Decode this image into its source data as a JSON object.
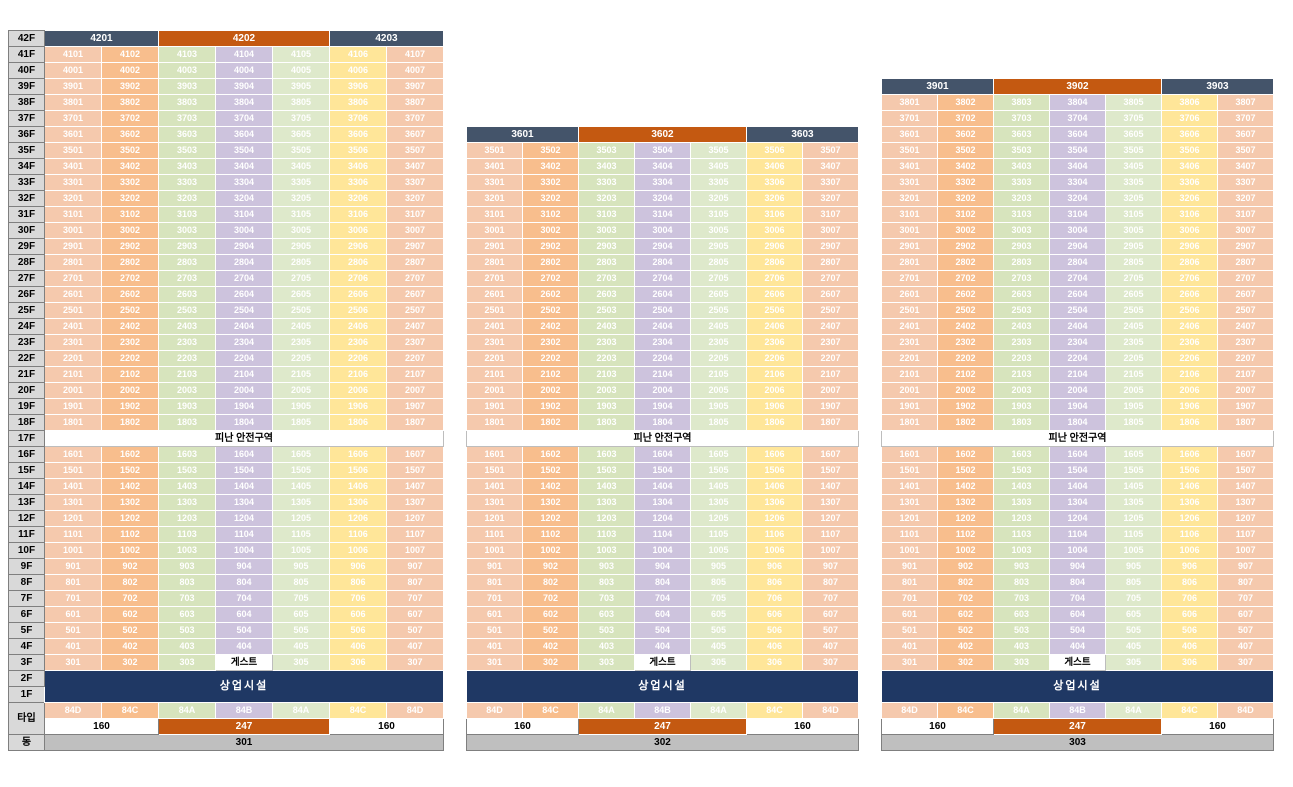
{
  "labels": {
    "refuge": "피난 안전구역",
    "guest": "게스트",
    "commercial": "상업시설",
    "type_row_label": "타입",
    "dong_row_label": "동"
  },
  "colors": {
    "header_navy": "#44546A",
    "header_orange": "#C45911",
    "commercial_navy": "#1F3864",
    "floor_label_bg": "#D9D9D9",
    "dong_bg": "#BFBFBF",
    "area_mid_bg": "#C45911",
    "unit_text": "#FFFFFF",
    "column_colors": [
      "#F5C9AD",
      "#F8BE8D",
      "#D7E4BD",
      "#CDC3DD",
      "#DEE9CB",
      "#FFE699",
      "#F5C9AD"
    ]
  },
  "chart_data": {
    "type": "table",
    "description": "Apartment stacking plan with three towers (301, 302, 303); unit numbers by floor, unit types and areas at bottom",
    "refuge_floor": 17,
    "commercial_floor_labels": [
      "2F",
      "1F"
    ],
    "floor_labels": [
      "42F",
      "41F",
      "40F",
      "39F",
      "38F",
      "37F",
      "36F",
      "35F",
      "34F",
      "33F",
      "32F",
      "31F",
      "30F",
      "29F",
      "28F",
      "27F",
      "26F",
      "25F",
      "24F",
      "23F",
      "22F",
      "21F",
      "20F",
      "19F",
      "18F",
      "17F",
      "16F",
      "15F",
      "14F",
      "13F",
      "12F",
      "11F",
      "10F",
      "9F",
      "8F",
      "7F",
      "6F",
      "5F",
      "4F",
      "3F",
      "2F",
      "1F"
    ],
    "towers": [
      {
        "name": "301",
        "top_floor": 42,
        "top_units": [
          "4201",
          "4202",
          "4203"
        ],
        "types": [
          "84D",
          "84C",
          "84A",
          "84B",
          "84A",
          "84C",
          "84D"
        ],
        "areas": [
          "160",
          "247",
          "160"
        ]
      },
      {
        "name": "302",
        "top_floor": 36,
        "top_units": [
          "3601",
          "3602",
          "3603"
        ],
        "types": [
          "84D",
          "84C",
          "84A",
          "84B",
          "84A",
          "84C",
          "84D"
        ],
        "areas": [
          "160",
          "247",
          "160"
        ]
      },
      {
        "name": "303",
        "top_floor": 39,
        "top_units": [
          "3901",
          "3902",
          "3903"
        ],
        "types": [
          "84D",
          "84C",
          "84A",
          "84B",
          "84A",
          "84C",
          "84D"
        ],
        "areas": [
          "160",
          "247",
          "160"
        ]
      }
    ],
    "unit_rows": {
      "41": [
        "4101",
        "4102",
        "4103",
        "4104",
        "4105",
        "4106",
        "4107"
      ],
      "40": [
        "4001",
        "4002",
        "4003",
        "4004",
        "4005",
        "4006",
        "4007"
      ],
      "39": [
        "3901",
        "3902",
        "3903",
        "3904",
        "3905",
        "3906",
        "3907"
      ],
      "38": [
        "3801",
        "3802",
        "3803",
        "3804",
        "3805",
        "3806",
        "3807"
      ],
      "37": [
        "3701",
        "3702",
        "3703",
        "3704",
        "3705",
        "3706",
        "3707"
      ],
      "36": [
        "3601",
        "3602",
        "3603",
        "3604",
        "3605",
        "3606",
        "3607"
      ],
      "35": [
        "3501",
        "3502",
        "3503",
        "3504",
        "3505",
        "3506",
        "3507"
      ],
      "34": [
        "3401",
        "3402",
        "3403",
        "3404",
        "3405",
        "3406",
        "3407"
      ],
      "33": [
        "3301",
        "3302",
        "3303",
        "3304",
        "3305",
        "3306",
        "3307"
      ],
      "32": [
        "3201",
        "3202",
        "3203",
        "3204",
        "3205",
        "3206",
        "3207"
      ],
      "31": [
        "3101",
        "3102",
        "3103",
        "3104",
        "3105",
        "3106",
        "3107"
      ],
      "30": [
        "3001",
        "3002",
        "3003",
        "3004",
        "3005",
        "3006",
        "3007"
      ],
      "29": [
        "2901",
        "2902",
        "2903",
        "2904",
        "2905",
        "2906",
        "2907"
      ],
      "28": [
        "2801",
        "2802",
        "2803",
        "2804",
        "2805",
        "2806",
        "2807"
      ],
      "27": [
        "2701",
        "2702",
        "2703",
        "2704",
        "2705",
        "2706",
        "2707"
      ],
      "26": [
        "2601",
        "2602",
        "2603",
        "2604",
        "2605",
        "2606",
        "2607"
      ],
      "25": [
        "2501",
        "2502",
        "2503",
        "2504",
        "2505",
        "2506",
        "2507"
      ],
      "24": [
        "2401",
        "2402",
        "2403",
        "2404",
        "2405",
        "2406",
        "2407"
      ],
      "23": [
        "2301",
        "2302",
        "2303",
        "2304",
        "2305",
        "2306",
        "2307"
      ],
      "22": [
        "2201",
        "2202",
        "2203",
        "2204",
        "2205",
        "2206",
        "2207"
      ],
      "21": [
        "2101",
        "2102",
        "2103",
        "2104",
        "2105",
        "2106",
        "2107"
      ],
      "20": [
        "2001",
        "2002",
        "2003",
        "2004",
        "2005",
        "2006",
        "2007"
      ],
      "19": [
        "1901",
        "1902",
        "1903",
        "1904",
        "1905",
        "1906",
        "1907"
      ],
      "18": [
        "1801",
        "1802",
        "1803",
        "1804",
        "1805",
        "1806",
        "1807"
      ],
      "16": [
        "1601",
        "1602",
        "1603",
        "1604",
        "1605",
        "1606",
        "1607"
      ],
      "15": [
        "1501",
        "1502",
        "1503",
        "1504",
        "1505",
        "1506",
        "1507"
      ],
      "14": [
        "1401",
        "1402",
        "1403",
        "1404",
        "1405",
        "1406",
        "1407"
      ],
      "13": [
        "1301",
        "1302",
        "1303",
        "1304",
        "1305",
        "1306",
        "1307"
      ],
      "12": [
        "1201",
        "1202",
        "1203",
        "1204",
        "1205",
        "1206",
        "1207"
      ],
      "11": [
        "1101",
        "1102",
        "1103",
        "1104",
        "1105",
        "1106",
        "1107"
      ],
      "10": [
        "1001",
        "1002",
        "1003",
        "1004",
        "1005",
        "1006",
        "1007"
      ],
      "9": [
        "901",
        "902",
        "903",
        "904",
        "905",
        "906",
        "907"
      ],
      "8": [
        "801",
        "802",
        "803",
        "804",
        "805",
        "806",
        "807"
      ],
      "7": [
        "701",
        "702",
        "703",
        "704",
        "705",
        "706",
        "707"
      ],
      "6": [
        "601",
        "602",
        "603",
        "604",
        "605",
        "606",
        "607"
      ],
      "5": [
        "501",
        "502",
        "503",
        "504",
        "505",
        "506",
        "507"
      ],
      "4": [
        "401",
        "402",
        "403",
        "404",
        "405",
        "406",
        "407"
      ],
      "3": [
        "301",
        "302",
        "303",
        "게스트",
        "305",
        "306",
        "307"
      ]
    }
  }
}
